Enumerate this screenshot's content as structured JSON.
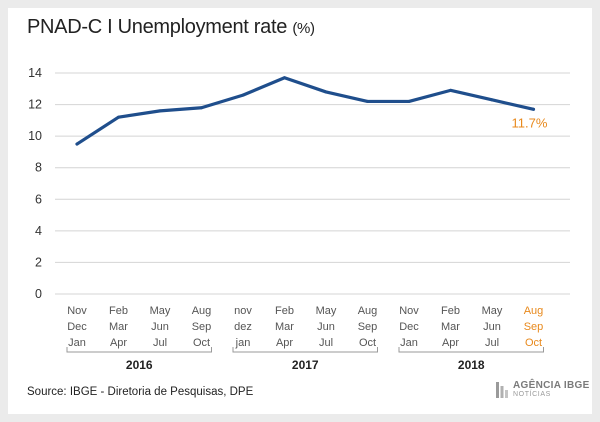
{
  "title": "PNAD-C I Unemployment rate",
  "title_unit": "(%)",
  "source": "Source: IBGE - Diretoria de Pesquisas, DPE",
  "logo": {
    "line1": "AGÊNCIA IBGE",
    "line2": "NOTÍCIAS"
  },
  "colors": {
    "line": "#1f4e8c",
    "highlight": "#e8891c",
    "grid": "#d4d4d4",
    "axis_text": "#333333",
    "tick_text": "#555555"
  },
  "chart_data": {
    "type": "line",
    "title": "PNAD-C I Unemployment rate (%)",
    "ylim": [
      0,
      14
    ],
    "yticks": [
      0,
      2,
      4,
      6,
      8,
      10,
      12,
      14
    ],
    "grid": true,
    "categories": [
      [
        "Nov",
        "Dec",
        "Jan"
      ],
      [
        "Feb",
        "Mar",
        "Apr"
      ],
      [
        "May",
        "Jun",
        "Jul"
      ],
      [
        "Aug",
        "Sep",
        "Oct"
      ],
      [
        "nov",
        "dez",
        "jan"
      ],
      [
        "Feb",
        "Mar",
        "Apr"
      ],
      [
        "May",
        "Jun",
        "Jul"
      ],
      [
        "Aug",
        "Sep",
        "Oct"
      ],
      [
        "Nov",
        "Dec",
        "Jan"
      ],
      [
        "Feb",
        "Mar",
        "Apr"
      ],
      [
        "May",
        "Jun",
        "Jul"
      ],
      [
        "Aug",
        "Sep",
        "Oct"
      ]
    ],
    "values": [
      9.5,
      11.2,
      11.6,
      11.8,
      12.6,
      13.7,
      12.8,
      12.2,
      12.2,
      12.9,
      12.3,
      11.7
    ],
    "years": [
      {
        "label": "2016",
        "start": 0,
        "end": 3
      },
      {
        "label": "2017",
        "start": 4,
        "end": 7
      },
      {
        "label": "2018",
        "start": 8,
        "end": 11
      }
    ],
    "last_label": "11.7%",
    "highlight_index": 11
  }
}
